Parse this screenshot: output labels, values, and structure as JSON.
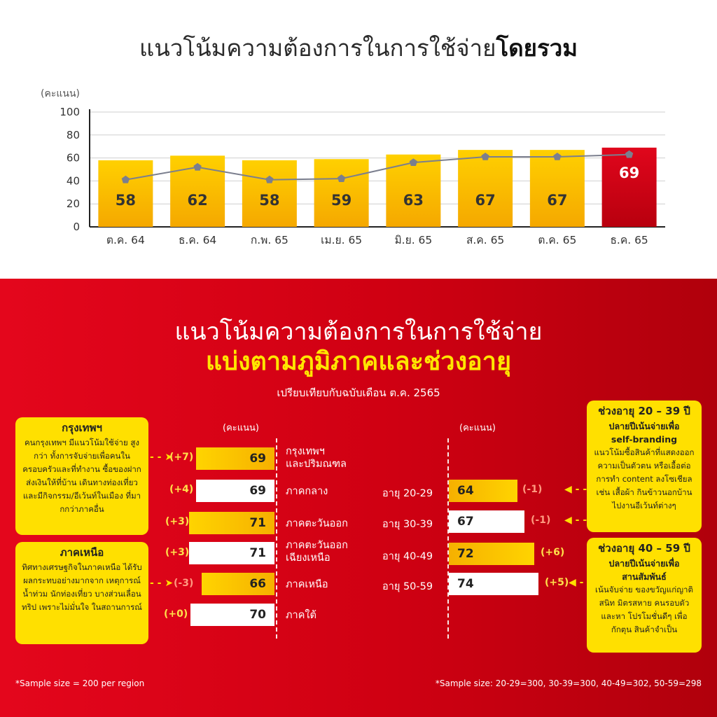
{
  "top": {
    "title_normal": "แนวโน้มความต้องการในการใช้จ่าย",
    "title_bold": "โดยรวม"
  },
  "chart_data": {
    "type": "bar",
    "ylabel": "(คะแนน)",
    "ylim": [
      0,
      100
    ],
    "yticks": [
      0,
      20,
      40,
      60,
      80,
      100
    ],
    "grid": true,
    "categories": [
      "ต.ค. 64",
      "ธ.ค. 64",
      "ก.พ. 65",
      "เม.ย. 65",
      "มิ.ย. 65",
      "ส.ค. 65",
      "ต.ค. 65",
      "ธ.ค. 65"
    ],
    "values": [
      58,
      62,
      58,
      59,
      63,
      67,
      67,
      69
    ],
    "line_values": [
      41,
      52,
      41,
      42,
      56,
      61,
      61,
      63
    ],
    "highlight_index": 7,
    "colors": {
      "bar": "#ffc400",
      "highlight": "#d40016",
      "line": "#7b7f8e"
    }
  },
  "bottom": {
    "title_line1": "แนวโน้มความต้องการในการใช้จ่าย",
    "title_line2": "แบ่งตามภูมิภาคและช่วงอายุ",
    "subtitle": "เปรียบเทียบกับฉบับเดือน ต.ค. 2565",
    "unit_left": "(คะแนน)",
    "unit_right": "(คะแนน)",
    "regions": [
      {
        "name": "กรุงเทพฯ\nและปริมณฑล",
        "value": "69",
        "change": "(+7)"
      },
      {
        "name": "ภาคกลาง",
        "value": "69",
        "change": "(+4)"
      },
      {
        "name": "ภาคตะวันออก",
        "value": "71",
        "change": "(+3)"
      },
      {
        "name": "ภาคตะวันออก\nเฉียงเหนือ",
        "value": "71",
        "change": "(+3)"
      },
      {
        "name": "ภาคเหนือ",
        "value": "66",
        "change": "(-3)"
      },
      {
        "name": "ภาคใต้",
        "value": "70",
        "change": "(+0)"
      }
    ],
    "ages": [
      {
        "label": "อายุ 20-29",
        "value": "64",
        "change": "(-1)"
      },
      {
        "label": "อายุ 30-39",
        "value": "67",
        "change": "(-1)"
      },
      {
        "label": "อายุ 40-49",
        "value": "72",
        "change": "(+6)"
      },
      {
        "label": "อายุ 50-59",
        "value": "74",
        "change": "(+5)"
      }
    ],
    "note_bkk": {
      "title": "กรุงเทพฯ",
      "body": "คนกรุงเทพฯ มีแนวโน้มใช้จ่าย สูงกว่า ทั้งการจับจ่ายเพื่อคนใน ครอบครัวและที่ทำงาน ซื้อของฝาก ส่งเงินให้ที่บ้าน เดินทางท่องเที่ยว และมีกิจกรรม/อีเว้นท์ในเมือง ที่มากกว่าภาคอื่น"
    },
    "note_north": {
      "title": "ภาคเหนือ",
      "body": "ทิศทางเศรษฐกิจในภาคเหนือ ได้รับผลกระทบอย่างมากจาก เหตุการณ์น้ำท่วม นักท่องเที่ยว บางส่วนเลื่อนทริป เพราะไม่มั่นใจ ในสถานการณ์"
    },
    "note_age1": {
      "title": "ช่วงอายุ 20 – 39 ปี",
      "sub1": "ปลายปีเน้นจ่ายเพื่อ",
      "sub2": "self-branding",
      "body": "แนวโน้มซื้อสินค้าที่แสดงออก ความเป็นตัวตน หรือเอื้อต่อ การทำ content ลงโซเชียล เช่น เสื้อผ้า กินข้าวนอกบ้าน ไปงานอีเว้นท์ต่างๆ"
    },
    "note_age2": {
      "title": "ช่วงอายุ 40 – 59 ปี",
      "sub1": "ปลายปีเน้นจ่ายเพื่อ",
      "sub2": "สานสัมพันธ์",
      "body": "เน้นจับจ่าย ของขวัญแก่ญาติสนิท มิตรสหาย คนรอบตัว และหา โปรโมชั่นดีๆ เพื่อกักตุน สินค้าจำเป็น"
    },
    "footnote_left": "*Sample size = 200 per region",
    "footnote_right": "*Sample size: 20-29=300, 30-39=300, 40-49=302, 50-59=298"
  }
}
